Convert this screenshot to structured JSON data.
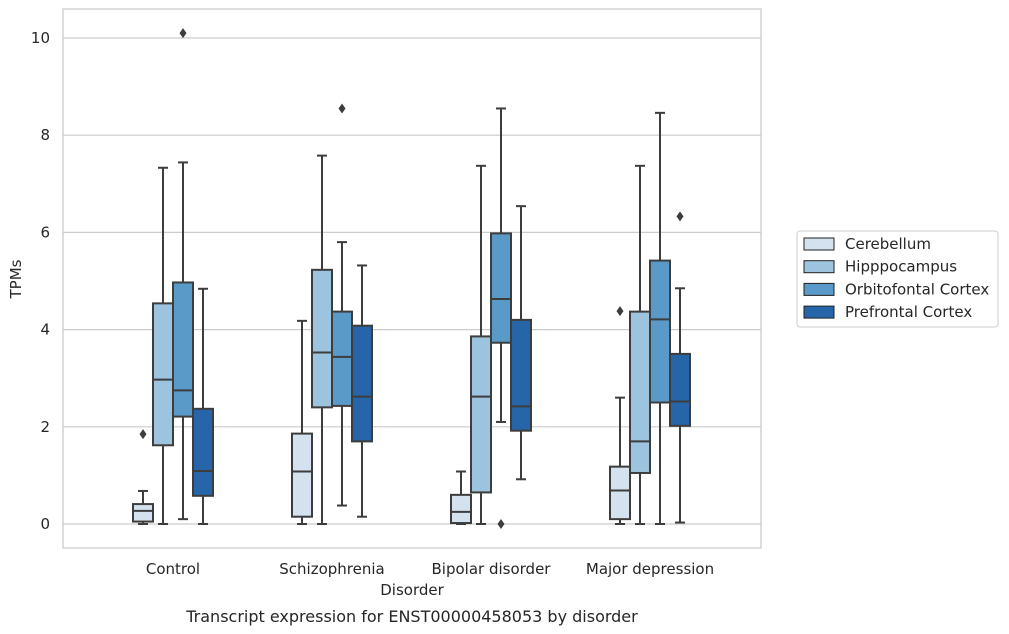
{
  "chart_data": {
    "type": "box",
    "xlabel": "Disorder",
    "ylabel": "TPMs",
    "caption": "Transcript expression for ENST00000458053 by disorder",
    "ylim": [
      -0.5,
      10.6
    ],
    "yticks": [
      0,
      2,
      4,
      6,
      8,
      10
    ],
    "grid": "horizontal",
    "legend_position": "right",
    "categories": [
      "Control",
      "Schizophrenia",
      "Bipolar disorder",
      "Major depression"
    ],
    "series": [
      {
        "name": "Cerebellum",
        "color": "#d4e2ef",
        "boxes": [
          {
            "min": 0.0,
            "q1": 0.05,
            "median": 0.27,
            "q3": 0.41,
            "max": 0.68,
            "outliers": [
              1.85
            ]
          },
          {
            "min": 0.0,
            "q1": 0.15,
            "median": 1.08,
            "q3": 1.86,
            "max": 4.18,
            "outliers": []
          },
          {
            "min": 0.0,
            "q1": 0.02,
            "median": 0.25,
            "q3": 0.6,
            "max": 1.08,
            "outliers": []
          },
          {
            "min": 0.0,
            "q1": 0.1,
            "median": 0.69,
            "q3": 1.18,
            "max": 2.6,
            "outliers": [
              4.38
            ]
          }
        ]
      },
      {
        "name": "Hipppocampus",
        "color": "#9cc4de",
        "boxes": [
          {
            "min": 0.0,
            "q1": 1.62,
            "median": 2.97,
            "q3": 4.54,
            "max": 7.33,
            "outliers": []
          },
          {
            "min": 0.0,
            "q1": 2.4,
            "median": 3.53,
            "q3": 5.23,
            "max": 7.58,
            "outliers": []
          },
          {
            "min": 0.0,
            "q1": 0.65,
            "median": 2.62,
            "q3": 3.86,
            "max": 7.37,
            "outliers": []
          },
          {
            "min": 0.0,
            "q1": 1.05,
            "median": 1.7,
            "q3": 4.37,
            "max": 7.37,
            "outliers": []
          }
        ]
      },
      {
        "name": "Orbitofontal Cortex",
        "color": "#5a9ac9",
        "boxes": [
          {
            "min": 0.1,
            "q1": 2.21,
            "median": 2.75,
            "q3": 4.97,
            "max": 7.44,
            "outliers": [
              10.1
            ]
          },
          {
            "min": 0.38,
            "q1": 2.43,
            "median": 3.44,
            "q3": 4.37,
            "max": 5.8,
            "outliers": [
              8.55
            ]
          },
          {
            "min": 2.1,
            "q1": 3.73,
            "median": 4.63,
            "q3": 5.98,
            "max": 8.55,
            "outliers": [
              0.0
            ]
          },
          {
            "min": 0.0,
            "q1": 2.5,
            "median": 4.21,
            "q3": 5.42,
            "max": 8.46,
            "outliers": []
          }
        ]
      },
      {
        "name": "Prefrontal Cortex",
        "color": "#2666a8",
        "boxes": [
          {
            "min": 0.0,
            "q1": 0.58,
            "median": 1.09,
            "q3": 2.37,
            "max": 4.84,
            "outliers": []
          },
          {
            "min": 0.15,
            "q1": 1.7,
            "median": 2.62,
            "q3": 4.08,
            "max": 5.32,
            "outliers": []
          },
          {
            "min": 0.92,
            "q1": 1.92,
            "median": 2.42,
            "q3": 4.2,
            "max": 6.54,
            "outliers": []
          },
          {
            "min": 0.03,
            "q1": 2.02,
            "median": 2.52,
            "q3": 3.5,
            "max": 4.85,
            "outliers": [
              6.33
            ]
          }
        ]
      }
    ]
  }
}
